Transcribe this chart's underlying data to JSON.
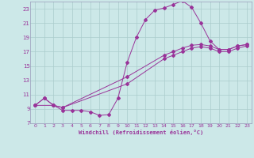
{
  "xlabel": "Windchill (Refroidissement éolien,°C)",
  "bg_color": "#cce8e8",
  "grid_color": "#aacccc",
  "line_color": "#993399",
  "spine_color": "#9999bb",
  "xlim": [
    -0.5,
    23.5
  ],
  "ylim": [
    7,
    24
  ],
  "xticks": [
    0,
    1,
    2,
    3,
    4,
    5,
    6,
    7,
    8,
    9,
    10,
    11,
    12,
    13,
    14,
    15,
    16,
    17,
    18,
    19,
    20,
    21,
    22,
    23
  ],
  "yticks": [
    7,
    9,
    11,
    13,
    15,
    17,
    19,
    21,
    23
  ],
  "line1_x": [
    0,
    1,
    2,
    3,
    4,
    5,
    6,
    7,
    8,
    9,
    10,
    11,
    12,
    13,
    14,
    15,
    16,
    17,
    18,
    19,
    20,
    21,
    22,
    23
  ],
  "line1_y": [
    9.5,
    10.5,
    9.5,
    8.8,
    8.8,
    8.8,
    8.6,
    8.1,
    8.2,
    10.5,
    15.5,
    19.0,
    21.5,
    22.8,
    23.1,
    23.6,
    24.1,
    23.2,
    21.0,
    18.5,
    17.3,
    17.3,
    17.8,
    18.0
  ],
  "line2_x": [
    0,
    1,
    2,
    3,
    10,
    14,
    15,
    16,
    17,
    18,
    19,
    20,
    21,
    22,
    23
  ],
  "line2_y": [
    9.5,
    10.5,
    9.5,
    9.2,
    13.5,
    16.5,
    17.0,
    17.5,
    17.9,
    18.0,
    17.8,
    17.3,
    17.3,
    17.8,
    18.0
  ],
  "line3_x": [
    0,
    2,
    3,
    10,
    14,
    15,
    16,
    17,
    18,
    19,
    20,
    21,
    22,
    23
  ],
  "line3_y": [
    9.5,
    9.5,
    9.2,
    12.5,
    16.0,
    16.5,
    17.0,
    17.5,
    17.7,
    17.5,
    17.0,
    17.0,
    17.5,
    17.8
  ]
}
